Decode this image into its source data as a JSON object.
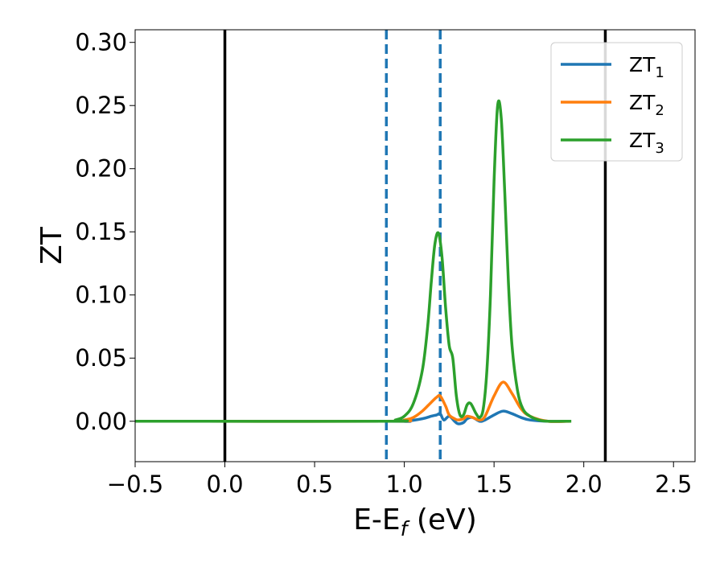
{
  "chart_data": {
    "type": "line",
    "title": "",
    "xlabel": {
      "main": "E-E",
      "sub": "f",
      "unit": " (eV)"
    },
    "ylabel": "ZT",
    "xlim": [
      -0.5,
      2.62
    ],
    "ylim": [
      -0.032,
      0.31
    ],
    "xticks": [
      -0.5,
      0.0,
      0.5,
      1.0,
      1.5,
      2.0,
      2.5
    ],
    "xtick_labels": [
      "−0.5",
      "0.0",
      "0.5",
      "1.0",
      "1.5",
      "2.0",
      "2.5"
    ],
    "yticks": [
      0.0,
      0.05,
      0.1,
      0.15,
      0.2,
      0.25,
      0.3
    ],
    "ytick_labels": [
      "0.00",
      "0.05",
      "0.10",
      "0.15",
      "0.20",
      "0.25",
      "0.30"
    ],
    "grid": false,
    "legend_position": "top-right",
    "vlines": [
      {
        "x": 0.0,
        "style": "solid",
        "color": "#000000"
      },
      {
        "x": 2.12,
        "style": "solid",
        "color": "#000000"
      },
      {
        "x": 0.9,
        "style": "dashed",
        "color": "#1f77b4"
      },
      {
        "x": 1.2,
        "style": "dashed",
        "color": "#1f77b4"
      }
    ],
    "series": [
      {
        "name": "ZT",
        "name_sub": "1",
        "color": "#1f77b4",
        "x": [
          -0.5,
          0.9,
          1.0,
          1.1,
          1.15,
          1.18,
          1.2,
          1.22,
          1.25,
          1.28,
          1.3,
          1.33,
          1.35,
          1.38,
          1.42,
          1.45,
          1.5,
          1.55,
          1.6,
          1.65,
          1.7,
          1.8,
          1.93
        ],
        "y": [
          0.0,
          0.0,
          0.0,
          0.002,
          0.004,
          0.005,
          0.006,
          0.001,
          0.004,
          0.0,
          -0.002,
          -0.001,
          0.002,
          0.003,
          0.0,
          0.001,
          0.005,
          0.008,
          0.006,
          0.003,
          0.001,
          0.0,
          0.0
        ]
      },
      {
        "name": "ZT",
        "name_sub": "2",
        "color": "#ff7f0e",
        "x": [
          -0.5,
          0.9,
          1.0,
          1.05,
          1.1,
          1.15,
          1.18,
          1.2,
          1.23,
          1.25,
          1.28,
          1.3,
          1.33,
          1.35,
          1.38,
          1.42,
          1.45,
          1.5,
          1.55,
          1.6,
          1.65,
          1.7,
          1.8,
          1.93
        ],
        "y": [
          0.0,
          0.0,
          0.001,
          0.003,
          0.008,
          0.015,
          0.019,
          0.02,
          0.012,
          0.005,
          0.002,
          0.001,
          0.002,
          0.004,
          0.003,
          0.001,
          0.004,
          0.02,
          0.031,
          0.022,
          0.01,
          0.004,
          0.0,
          0.0
        ]
      },
      {
        "name": "ZT",
        "name_sub": "3",
        "color": "#2ca02c",
        "x": [
          -0.5,
          0.9,
          0.95,
          1.0,
          1.05,
          1.1,
          1.13,
          1.15,
          1.17,
          1.19,
          1.21,
          1.23,
          1.25,
          1.27,
          1.29,
          1.31,
          1.33,
          1.35,
          1.37,
          1.4,
          1.42,
          1.44,
          1.46,
          1.48,
          1.5,
          1.52,
          1.54,
          1.56,
          1.58,
          1.6,
          1.63,
          1.66,
          1.7,
          1.75,
          1.8,
          1.93
        ],
        "y": [
          0.0,
          0.0,
          0.001,
          0.004,
          0.014,
          0.04,
          0.075,
          0.11,
          0.14,
          0.149,
          0.13,
          0.09,
          0.06,
          0.05,
          0.02,
          0.005,
          0.005,
          0.013,
          0.014,
          0.006,
          0.003,
          0.01,
          0.04,
          0.1,
          0.19,
          0.25,
          0.24,
          0.18,
          0.11,
          0.06,
          0.025,
          0.01,
          0.004,
          0.001,
          0.0,
          0.0
        ]
      }
    ]
  }
}
